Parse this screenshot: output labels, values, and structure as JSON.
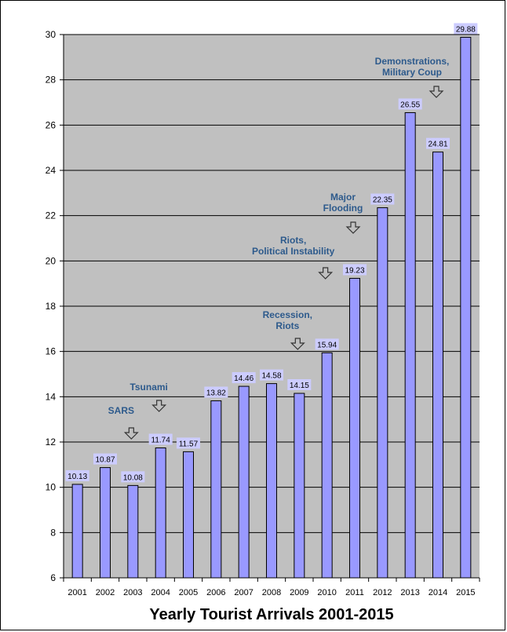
{
  "chart_data": {
    "type": "bar",
    "title": "Yearly Tourist Arrivals 2001-2015",
    "xlabel": "",
    "ylabel": "",
    "ylim": [
      6,
      30
    ],
    "yticks": [
      6,
      8,
      10,
      12,
      14,
      16,
      18,
      20,
      22,
      24,
      26,
      28,
      30
    ],
    "grid": true,
    "categories": [
      "2001",
      "2002",
      "2003",
      "2004",
      "2005",
      "2006",
      "2007",
      "2008",
      "2009",
      "2010",
      "2011",
      "2012",
      "2013",
      "2014",
      "2015"
    ],
    "values": [
      10.13,
      10.87,
      10.08,
      11.74,
      11.57,
      13.82,
      14.46,
      14.58,
      14.15,
      15.94,
      19.23,
      22.35,
      26.55,
      24.81,
      29.88
    ],
    "value_labels": [
      "10.13",
      "10.87",
      "10.08",
      "11.74",
      "11.57",
      "13.82",
      "14.46",
      "14.58",
      "14.15",
      "15.94",
      "19.23",
      "22.35",
      "26.55",
      "24.81",
      "29.88"
    ],
    "annotations": [
      {
        "category": "2003",
        "lines": [
          "SARS"
        ]
      },
      {
        "category": "2004",
        "lines": [
          "Tsunami"
        ]
      },
      {
        "category": "2009",
        "lines": [
          "Recession,",
          "Riots"
        ]
      },
      {
        "category": "2010",
        "lines": [
          "Riots,",
          "Political Instability"
        ]
      },
      {
        "category": "2011",
        "lines": [
          "Major",
          "Flooding"
        ]
      },
      {
        "category": "2014",
        "lines": [
          "Demonstrations,",
          "Military Coup"
        ]
      }
    ],
    "colors": {
      "plot_bg": "#c0c0c0",
      "bar_fill": "#9999ff",
      "bar_stroke": "#000000",
      "label_bg": "#ccccff",
      "annotation_text": "#2d5a8c",
      "grid": "#000000"
    }
  }
}
